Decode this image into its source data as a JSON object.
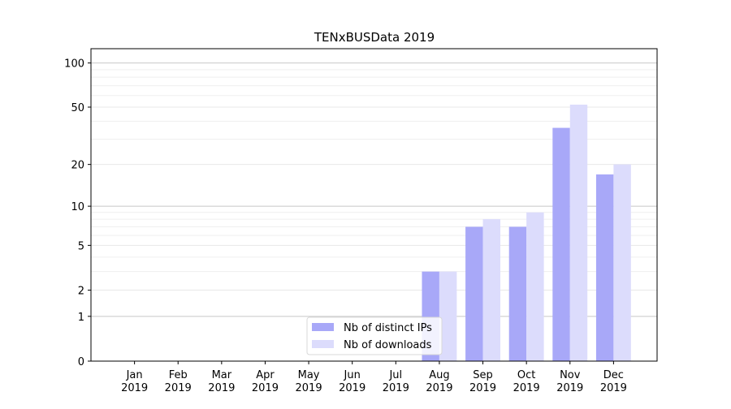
{
  "chart_data": {
    "type": "bar",
    "title": "TENxBUSData 2019",
    "xlabel": "",
    "ylabel": "",
    "y_scale": "log(1+y)",
    "ylim": [
      0,
      125
    ],
    "y_ticks": [
      0,
      1,
      2,
      5,
      10,
      20,
      50,
      100
    ],
    "grid": "horizontal",
    "legend_position": "bottom-center",
    "categories": [
      [
        "Jan",
        "2019"
      ],
      [
        "Feb",
        "2019"
      ],
      [
        "Mar",
        "2019"
      ],
      [
        "Apr",
        "2019"
      ],
      [
        "May",
        "2019"
      ],
      [
        "Jun",
        "2019"
      ],
      [
        "Jul",
        "2019"
      ],
      [
        "Aug",
        "2019"
      ],
      [
        "Sep",
        "2019"
      ],
      [
        "Oct",
        "2019"
      ],
      [
        "Nov",
        "2019"
      ],
      [
        "Dec",
        "2019"
      ]
    ],
    "series": [
      {
        "name": "Nb of distinct IPs",
        "color": "#a8a8f8",
        "values": [
          0,
          0,
          0,
          0,
          0,
          0,
          0,
          3,
          7,
          7,
          36,
          17
        ]
      },
      {
        "name": "Nb of downloads",
        "color": "#dcdcfc",
        "values": [
          0,
          0,
          0,
          0,
          0,
          0,
          0,
          3,
          8,
          9,
          52,
          20
        ]
      }
    ]
  }
}
